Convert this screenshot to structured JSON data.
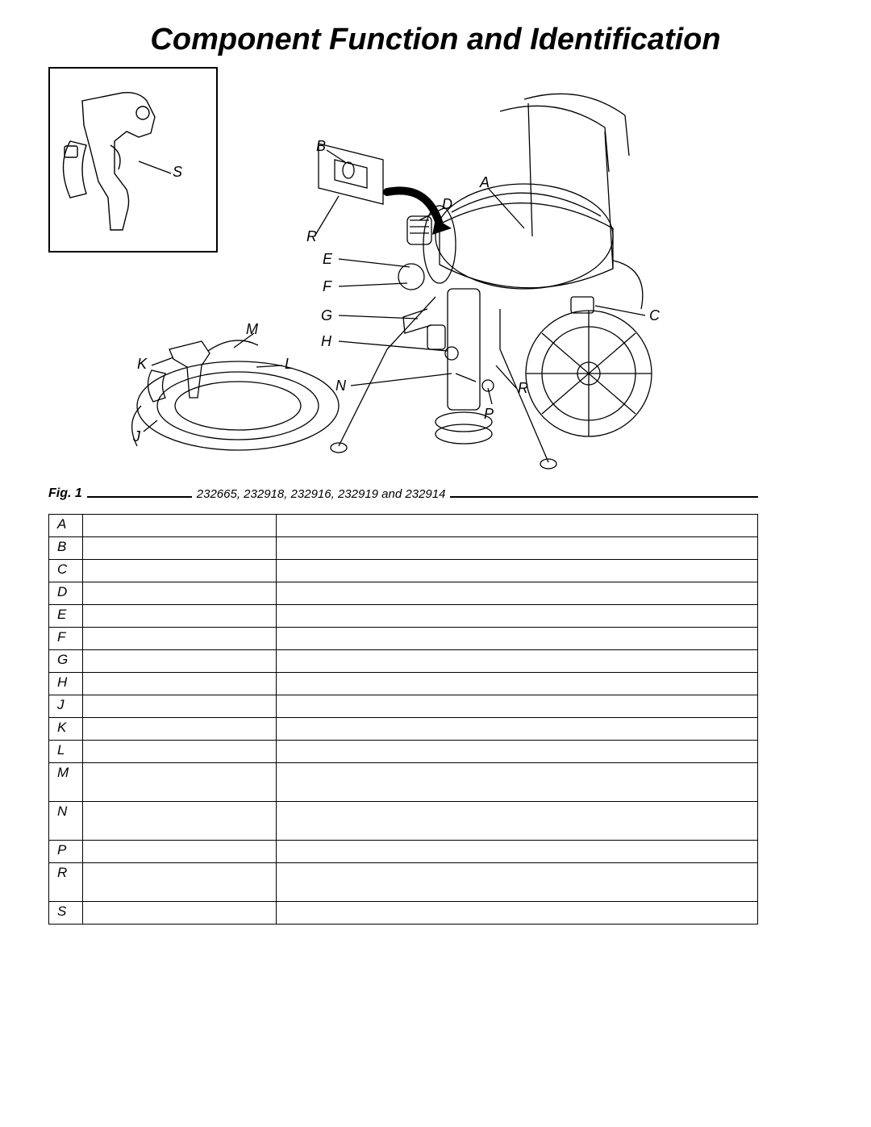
{
  "title": "Component Function and Identification",
  "figure": {
    "label": "Fig. 1",
    "models_text": "232665, 232918, 232916, 232919 and 232914",
    "callouts": {
      "A": "A",
      "B": "B",
      "C": "C",
      "D": "D",
      "E": "E",
      "F": "F",
      "G": "G",
      "H": "H",
      "J": "J",
      "K": "K",
      "L": "L",
      "M": "M",
      "N": "N",
      "P": "P",
      "R1": "R",
      "R2": "R",
      "S": "S"
    },
    "line_color": "#000000",
    "line_width": 1.2,
    "box_border_color": "#000000"
  },
  "table": {
    "columns": [
      "letter",
      "name",
      "description"
    ],
    "rows": [
      {
        "letter": "A",
        "name": "",
        "desc": "",
        "height": "h1"
      },
      {
        "letter": "B",
        "name": "",
        "desc": "",
        "height": "h1"
      },
      {
        "letter": "C",
        "name": "",
        "desc": "",
        "height": "h1"
      },
      {
        "letter": "D",
        "name": "",
        "desc": "",
        "height": "h1"
      },
      {
        "letter": "E",
        "name": "",
        "desc": "",
        "height": "h1"
      },
      {
        "letter": "F",
        "name": "",
        "desc": "",
        "height": "h1"
      },
      {
        "letter": "G",
        "name": "",
        "desc": "",
        "height": "h1"
      },
      {
        "letter": "H",
        "name": "",
        "desc": "",
        "height": "h1"
      },
      {
        "letter": "J",
        "name": "",
        "desc": "",
        "height": "h1"
      },
      {
        "letter": "K",
        "name": "",
        "desc": "",
        "height": "h1"
      },
      {
        "letter": "L",
        "name": "",
        "desc": "",
        "height": "h1"
      },
      {
        "letter": "M",
        "name": "",
        "desc": "",
        "height": "h2"
      },
      {
        "letter": "N",
        "name": "",
        "desc": "",
        "height": "h2"
      },
      {
        "letter": "P",
        "name": "",
        "desc": "",
        "height": "h1"
      },
      {
        "letter": "R",
        "name": "",
        "desc": "",
        "height": "h2"
      },
      {
        "letter": "S",
        "name": "",
        "desc": "",
        "height": "h1"
      }
    ]
  },
  "style": {
    "title_fontsize": 38,
    "callout_fontsize": 18,
    "table_fontsize": 17,
    "background_color": "#ffffff",
    "text_color": "#000000"
  }
}
